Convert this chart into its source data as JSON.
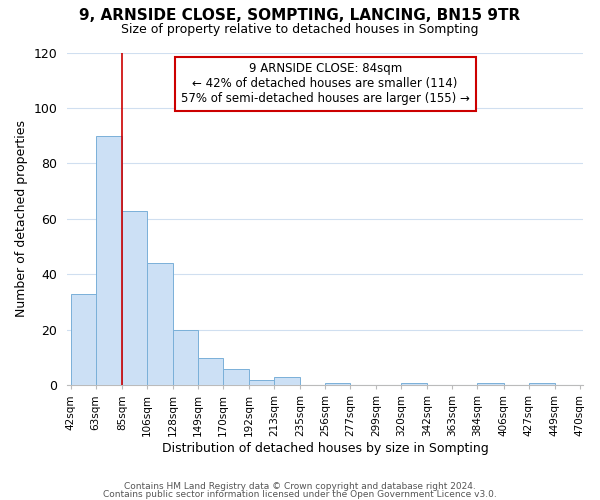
{
  "title": "9, ARNSIDE CLOSE, SOMPTING, LANCING, BN15 9TR",
  "subtitle": "Size of property relative to detached houses in Sompting",
  "xlabel": "Distribution of detached houses by size in Sompting",
  "ylabel": "Number of detached properties",
  "bar_edges": [
    42,
    63,
    85,
    106,
    128,
    149,
    170,
    192,
    213,
    235,
    256,
    277,
    299,
    320,
    342,
    363,
    384,
    406,
    427,
    449,
    470
  ],
  "bar_heights": [
    33,
    90,
    63,
    44,
    20,
    10,
    6,
    2,
    3,
    0,
    1,
    0,
    0,
    1,
    0,
    0,
    1,
    0,
    1,
    0
  ],
  "bar_color": "#cce0f5",
  "bar_edgecolor": "#7ab0d8",
  "ylim": [
    0,
    120
  ],
  "yticks": [
    0,
    20,
    40,
    60,
    80,
    100,
    120
  ],
  "property_line_x": 85,
  "property_line_color": "#cc0000",
  "annotation_line1": "9 ARNSIDE CLOSE: 84sqm",
  "annotation_line2": "← 42% of detached houses are smaller (114)",
  "annotation_line3": "57% of semi-detached houses are larger (155) →",
  "footnote1": "Contains HM Land Registry data © Crown copyright and database right 2024.",
  "footnote2": "Contains public sector information licensed under the Open Government Licence v3.0.",
  "background_color": "#ffffff",
  "grid_color": "#d0dff0",
  "tick_labels": [
    "42sqm",
    "63sqm",
    "85sqm",
    "106sqm",
    "128sqm",
    "149sqm",
    "170sqm",
    "192sqm",
    "213sqm",
    "235sqm",
    "256sqm",
    "277sqm",
    "299sqm",
    "320sqm",
    "342sqm",
    "363sqm",
    "384sqm",
    "406sqm",
    "427sqm",
    "449sqm",
    "470sqm"
  ]
}
